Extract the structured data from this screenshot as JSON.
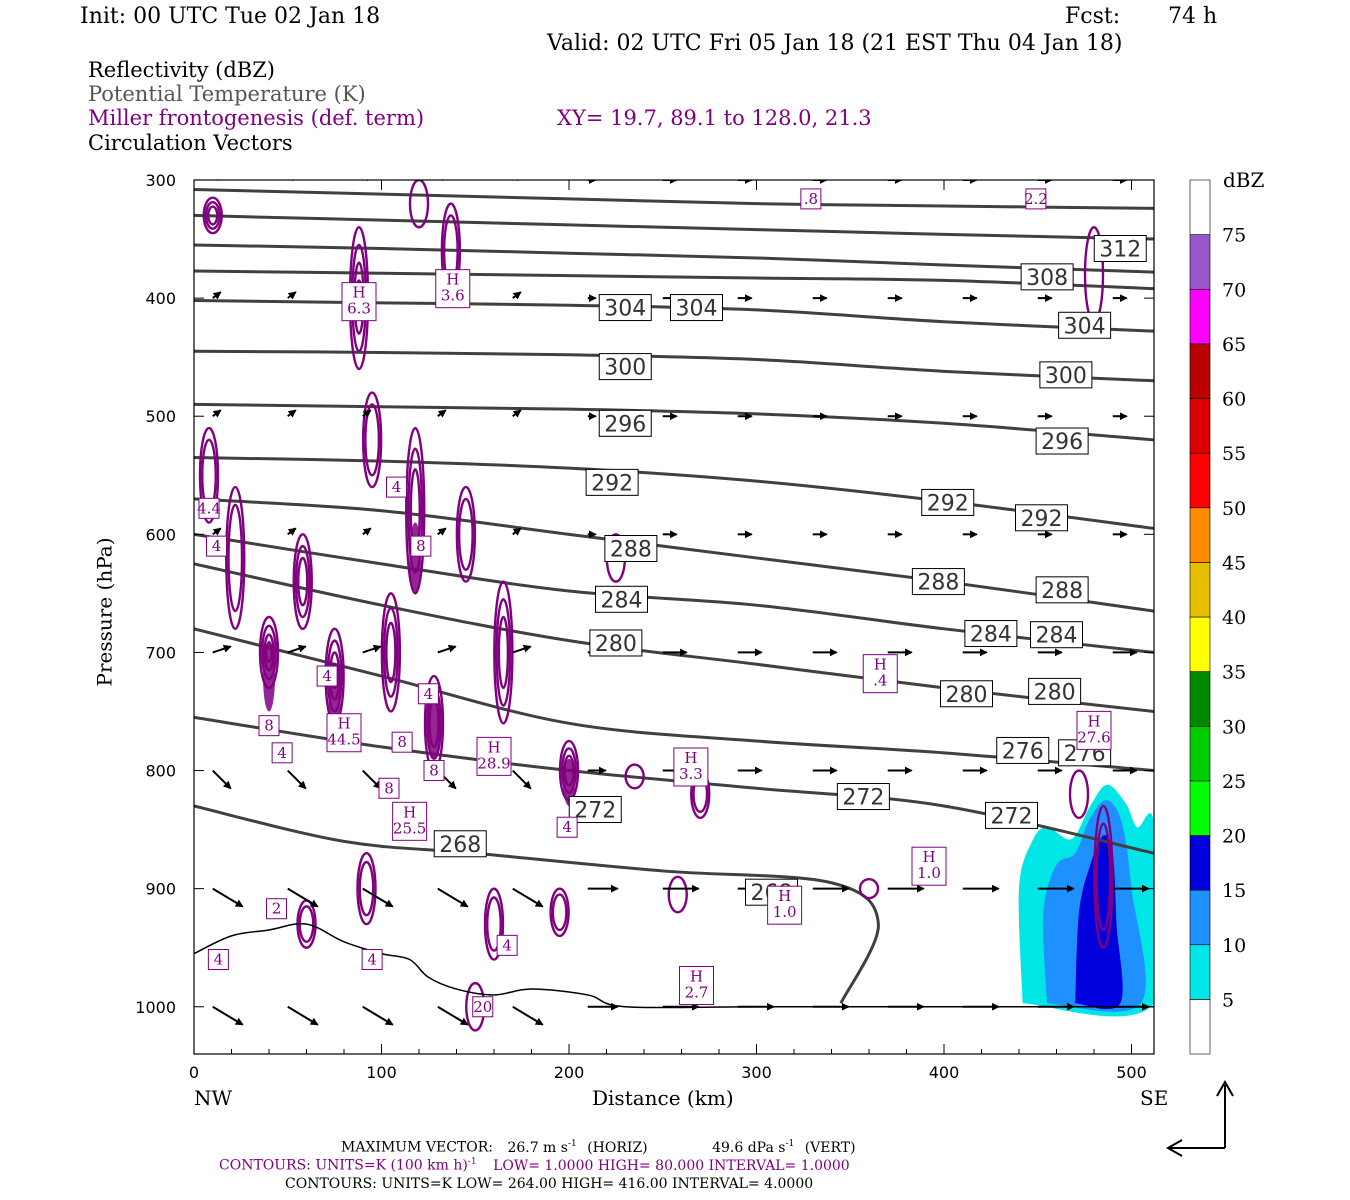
{
  "header": {
    "init": "Init: 00 UTC Tue 02 Jan 18",
    "fcst_label": "Fcst:",
    "fcst_value": "74 h",
    "valid": "Valid: 02 UTC Fri 05 Jan 18 (21 EST Thu 04 Jan 18)"
  },
  "legend": {
    "reflectivity": "Reflectivity (dBZ)",
    "theta": "Potential Temperature (K)",
    "frontogenesis": "Miller frontogenesis (def. term)",
    "xy": "XY=  19.7, 89.1 to 128.0, 21.3",
    "vectors": "Circulation Vectors"
  },
  "colors": {
    "theta": "#404040",
    "frontogenesis": "#800080",
    "vector": "#000000"
  },
  "chart_data": {
    "type": "cross-section",
    "xlabel": "Distance (km)",
    "ylabel": "Pressure (hPa)",
    "xlim": [
      0,
      512
    ],
    "ylim": [
      1040,
      300
    ],
    "x_ticks": [
      0,
      100,
      200,
      300,
      400,
      500
    ],
    "y_ticks": [
      300,
      400,
      500,
      600,
      700,
      800,
      900,
      1000
    ],
    "left_end_label": "NW",
    "right_end_label": "SE",
    "colorbar": {
      "title": "dBZ",
      "levels": [
        5,
        10,
        15,
        20,
        25,
        30,
        35,
        40,
        45,
        50,
        55,
        60,
        65,
        70,
        75
      ],
      "colors": [
        "#ffffff",
        "#00e5e5",
        "#1e90ff",
        "#0000dd",
        "#00ff00",
        "#00cc00",
        "#008800",
        "#ffff00",
        "#e6c000",
        "#ff8c00",
        "#ff0000",
        "#dd0000",
        "#bb0000",
        "#ff00ff",
        "#9955cc",
        "#ffffff"
      ]
    },
    "theta_contours": [
      {
        "label": "312",
        "points": [
          [
            0,
            308
          ],
          [
            100,
            312
          ],
          [
            200,
            316
          ],
          [
            300,
            320
          ],
          [
            400,
            322
          ],
          [
            512,
            324
          ]
        ],
        "labels_at": [
          [
            494,
            358
          ]
        ]
      },
      {
        "label": "308",
        "points": [
          [
            0,
            330
          ],
          [
            100,
            334
          ],
          [
            200,
            338
          ],
          [
            300,
            342
          ],
          [
            400,
            346
          ],
          [
            512,
            350
          ]
        ],
        "labels_at": [
          [
            455,
            382
          ]
        ]
      },
      {
        "label": "304",
        "points": [
          [
            0,
            355
          ],
          [
            100,
            358
          ],
          [
            200,
            362
          ],
          [
            300,
            366
          ],
          [
            400,
            372
          ],
          [
            512,
            378
          ]
        ],
        "labels_at": []
      },
      {
        "label": "300",
        "points": [
          [
            0,
            377
          ],
          [
            100,
            379
          ],
          [
            200,
            381
          ],
          [
            300,
            383
          ],
          [
            400,
            385
          ],
          [
            512,
            392
          ]
        ],
        "labels_at": []
      },
      {
        "label": "304",
        "points": [
          [
            0,
            402
          ],
          [
            100,
            404
          ],
          [
            200,
            406
          ],
          [
            300,
            410
          ],
          [
            400,
            420
          ],
          [
            512,
            428
          ]
        ],
        "labels_at": [
          [
            230,
            408
          ],
          [
            268,
            408
          ],
          [
            475,
            423
          ]
        ]
      },
      {
        "label": "300",
        "points": [
          [
            0,
            445
          ],
          [
            100,
            446
          ],
          [
            200,
            448
          ],
          [
            300,
            452
          ],
          [
            400,
            462
          ],
          [
            512,
            470
          ]
        ],
        "labels_at": [
          [
            230,
            458
          ],
          [
            465,
            465
          ]
        ]
      },
      {
        "label": "296",
        "points": [
          [
            0,
            490
          ],
          [
            100,
            492
          ],
          [
            200,
            494
          ],
          [
            300,
            498
          ],
          [
            400,
            506
          ],
          [
            512,
            520
          ]
        ],
        "labels_at": [
          [
            230,
            506
          ],
          [
            463,
            521
          ]
        ]
      },
      {
        "label": "292",
        "points": [
          [
            0,
            535
          ],
          [
            100,
            538
          ],
          [
            200,
            544
          ],
          [
            300,
            555
          ],
          [
            400,
            572
          ],
          [
            512,
            595
          ]
        ],
        "labels_at": [
          [
            223,
            556
          ],
          [
            402,
            573
          ],
          [
            452,
            586
          ]
        ]
      },
      {
        "label": "288",
        "points": [
          [
            0,
            570
          ],
          [
            100,
            580
          ],
          [
            200,
            600
          ],
          [
            300,
            620
          ],
          [
            400,
            640
          ],
          [
            512,
            665
          ]
        ],
        "labels_at": [
          [
            233,
            612
          ],
          [
            397,
            640
          ],
          [
            463,
            647
          ]
        ]
      },
      {
        "label": "284",
        "points": [
          [
            0,
            600
          ],
          [
            100,
            625
          ],
          [
            200,
            648
          ],
          [
            300,
            660
          ],
          [
            400,
            680
          ],
          [
            512,
            700
          ]
        ],
        "labels_at": [
          [
            228,
            655
          ],
          [
            425,
            684
          ],
          [
            460,
            685
          ]
        ]
      },
      {
        "label": "280",
        "points": [
          [
            0,
            625
          ],
          [
            100,
            660
          ],
          [
            200,
            690
          ],
          [
            300,
            710
          ],
          [
            400,
            730
          ],
          [
            512,
            750
          ]
        ],
        "labels_at": [
          [
            225,
            692
          ],
          [
            412,
            735
          ],
          [
            459,
            733
          ]
        ]
      },
      {
        "label": "276",
        "points": [
          [
            0,
            680
          ],
          [
            100,
            720
          ],
          [
            200,
            760
          ],
          [
            300,
            775
          ],
          [
            400,
            785
          ],
          [
            512,
            800
          ]
        ],
        "labels_at": [
          [
            442,
            783
          ],
          [
            475,
            785
          ]
        ]
      },
      {
        "label": "272",
        "points": [
          [
            0,
            755
          ],
          [
            100,
            780
          ],
          [
            200,
            800
          ],
          [
            300,
            815
          ],
          [
            400,
            830
          ],
          [
            512,
            870
          ]
        ],
        "labels_at": [
          [
            214,
            833
          ],
          [
            357,
            822
          ],
          [
            436,
            838
          ]
        ]
      },
      {
        "label": "268",
        "points": [
          [
            0,
            830
          ],
          [
            80,
            860
          ],
          [
            150,
            870
          ],
          [
            250,
            885
          ],
          [
            340,
            895
          ],
          [
            365,
            930
          ],
          [
            345,
            997
          ]
        ],
        "labels_at": [
          [
            142,
            862
          ],
          [
            308,
            903
          ]
        ]
      }
    ],
    "frontogenesis_labels": [
      {
        "text": "H\n6.3",
        "x": 88,
        "y": 403
      },
      {
        "text": "H\n3.6",
        "x": 138,
        "y": 392
      },
      {
        "text": "H\n44.5",
        "x": 80,
        "y": 768
      },
      {
        "text": "H\n28.9",
        "x": 160,
        "y": 788
      },
      {
        "text": "H\n25.5",
        "x": 115,
        "y": 843
      },
      {
        "text": "H\n3.3",
        "x": 265,
        "y": 797
      },
      {
        "text": "H\n.4",
        "x": 366,
        "y": 718
      },
      {
        "text": "H\n1.0",
        "x": 392,
        "y": 881
      },
      {
        "text": "H\n1.0",
        "x": 315,
        "y": 914
      },
      {
        "text": "H\n2.7",
        "x": 268,
        "y": 982
      },
      {
        "text": "H\n27.6",
        "x": 480,
        "y": 766
      },
      {
        "text": "4",
        "x": 108,
        "y": 560
      },
      {
        "text": "8",
        "x": 121,
        "y": 610
      },
      {
        "text": "4",
        "x": 71,
        "y": 720
      },
      {
        "text": "8",
        "x": 40,
        "y": 762
      },
      {
        "text": "4",
        "x": 47,
        "y": 785
      },
      {
        "text": "8",
        "x": 111,
        "y": 776
      },
      {
        "text": "4",
        "x": 125,
        "y": 735
      },
      {
        "text": "8",
        "x": 128,
        "y": 800
      },
      {
        "text": "8",
        "x": 104,
        "y": 815
      },
      {
        "text": "4",
        "x": 199,
        "y": 848
      },
      {
        "text": "4",
        "x": 167,
        "y": 948
      },
      {
        "text": "4",
        "x": 95,
        "y": 960
      },
      {
        "text": "4",
        "x": 13,
        "y": 960
      },
      {
        "text": "4.4",
        "x": 8,
        "y": 578
      },
      {
        "text": "4",
        "x": 12,
        "y": 610
      },
      {
        "text": "2",
        "x": 44,
        "y": 917
      },
      {
        "text": "20",
        "x": 154,
        "y": 1000
      },
      {
        "text": ".8",
        "x": 329,
        "y": 316
      },
      {
        "text": "2.2",
        "x": 449,
        "y": 316
      }
    ],
    "reflectivity_areas": [
      {
        "dbz": 5,
        "points": [
          [
            442,
            997
          ],
          [
            440,
            900
          ],
          [
            447,
            860
          ],
          [
            455,
            848
          ],
          [
            468,
            858
          ],
          [
            478,
            830
          ],
          [
            487,
            812
          ],
          [
            497,
            828
          ],
          [
            503,
            848
          ],
          [
            512,
            846
          ],
          [
            512,
            997
          ]
        ]
      },
      {
        "dbz": 10,
        "points": [
          [
            455,
            997
          ],
          [
            453,
            920
          ],
          [
            460,
            880
          ],
          [
            470,
            870
          ],
          [
            478,
            840
          ],
          [
            487,
            825
          ],
          [
            495,
            845
          ],
          [
            500,
            900
          ],
          [
            505,
            997
          ]
        ]
      },
      {
        "dbz": 15,
        "points": [
          [
            470,
            997
          ],
          [
            472,
            920
          ],
          [
            478,
            880
          ],
          [
            485,
            855
          ],
          [
            490,
            870
          ],
          [
            492,
            930
          ],
          [
            494,
            997
          ]
        ]
      }
    ],
    "max_vector": {
      "horiz": "26.7 m s-1",
      "vert": "49.6 dPa s-1"
    }
  },
  "footer": {
    "max_vector_label": "MAXIMUM VECTOR:",
    "max_vector_horiz": "26.7 m s",
    "max_vector_horiz_exp": "-1",
    "max_vector_horiz_tag": "(HORIZ)",
    "max_vector_vert": "49.6 dPa s",
    "max_vector_vert_exp": "-1",
    "max_vector_vert_tag": "(VERT)",
    "contours1_a": "CONTOURS:  UNITS=K (100 km h)",
    "contours1_exp": "-1",
    "contours1_b": "LOW=  1.0000       HIGH=  80.000       INTERVAL=   1.0000",
    "contours2": "CONTOURS:  UNITS=K  LOW=  264.00       HIGH=  416.00       INTERVAL=   4.0000"
  }
}
